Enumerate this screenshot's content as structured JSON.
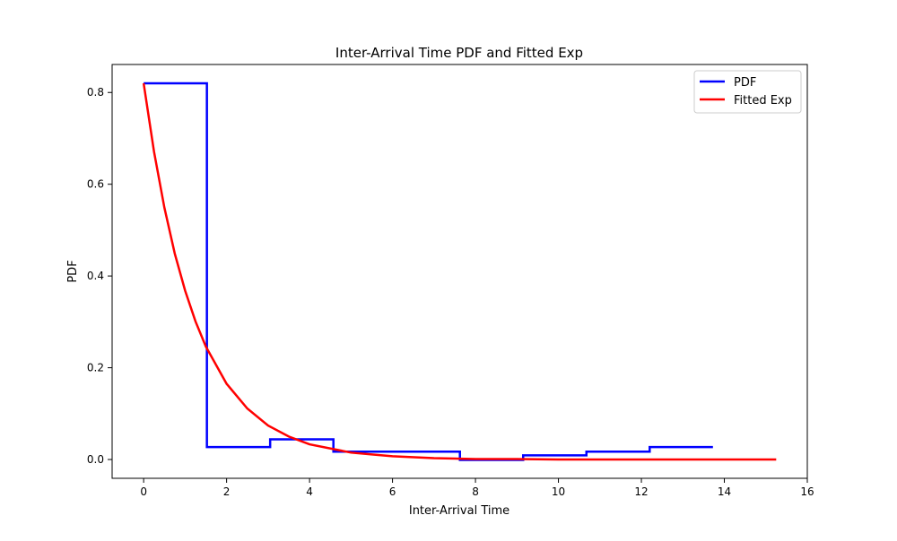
{
  "chart_data": {
    "type": "line",
    "title": "Inter-Arrival Time PDF and Fitted Exp",
    "xlabel": "Inter-Arrival Time",
    "ylabel": "PDF",
    "xlim": [
      -0.76,
      16.0
    ],
    "ylim": [
      -0.041,
      0.861
    ],
    "xticks": [
      0,
      2,
      4,
      6,
      8,
      10,
      12,
      14,
      16
    ],
    "yticks": [
      0.0,
      0.2,
      0.4,
      0.6,
      0.8
    ],
    "xtick_labels": [
      "0",
      "2",
      "4",
      "6",
      "8",
      "10",
      "12",
      "14",
      "16"
    ],
    "ytick_labels": [
      "0.0",
      "0.2",
      "0.4",
      "0.6",
      "0.8"
    ],
    "grid": false,
    "legend_position": "top-right",
    "series": [
      {
        "name": "PDF",
        "style": "steps",
        "color": "#0000ff",
        "bin_edges": [
          0,
          1.525,
          3.05,
          4.575,
          6.1,
          7.625,
          9.15,
          10.675,
          12.2,
          13.725
        ],
        "values": [
          0.82,
          0.027,
          0.044,
          0.017,
          0.017,
          -0.001,
          0.009,
          0.017,
          0.027
        ]
      },
      {
        "name": "Fitted Exp",
        "style": "line",
        "color": "#ff0000",
        "x": [
          0,
          0.25,
          0.5,
          0.75,
          1.0,
          1.25,
          1.5,
          2.0,
          2.5,
          3.0,
          3.5,
          4.0,
          5.0,
          6.0,
          7.0,
          8.0,
          9.0,
          10.0,
          12.0,
          14.0,
          15.25
        ],
        "y": [
          0.82,
          0.671,
          0.549,
          0.449,
          0.368,
          0.301,
          0.246,
          0.165,
          0.111,
          0.074,
          0.05,
          0.033,
          0.015,
          0.007,
          0.003,
          0.001,
          0.001,
          0.0,
          0.0,
          0.0,
          0.0
        ]
      }
    ]
  }
}
